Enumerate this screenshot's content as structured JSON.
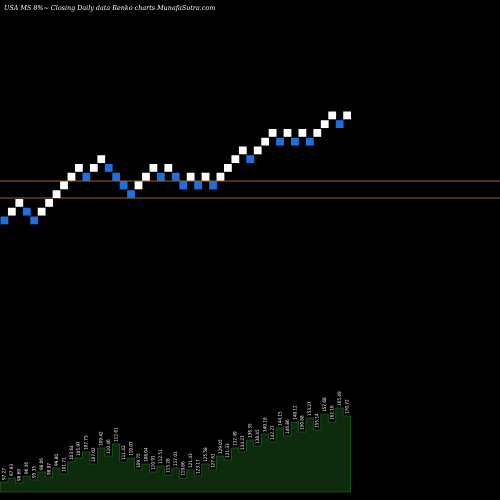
{
  "chart_data": {
    "type": "renko",
    "title": "USA MS 8%~  Closing Daily data  Renko  charts MunafaSutra.com",
    "colors": {
      "background": "#000000",
      "up_brick": "#ffffff",
      "down_brick": "#1e6fe0",
      "reference_line": "#a0621a",
      "volume_fill": "#0c2a0c",
      "volume_stroke": "#1f5a1f",
      "label": "#ffffff"
    },
    "bricks": [
      {
        "level": 0,
        "dir": "down"
      },
      {
        "level": 1,
        "dir": "up"
      },
      {
        "level": 2,
        "dir": "up"
      },
      {
        "level": 1,
        "dir": "down"
      },
      {
        "level": 0,
        "dir": "down"
      },
      {
        "level": 1,
        "dir": "up"
      },
      {
        "level": 2,
        "dir": "up"
      },
      {
        "level": 3,
        "dir": "up"
      },
      {
        "level": 4,
        "dir": "up"
      },
      {
        "level": 5,
        "dir": "up"
      },
      {
        "level": 6,
        "dir": "up"
      },
      {
        "level": 5,
        "dir": "down"
      },
      {
        "level": 6,
        "dir": "up"
      },
      {
        "level": 7,
        "dir": "up"
      },
      {
        "level": 6,
        "dir": "down"
      },
      {
        "level": 5,
        "dir": "down"
      },
      {
        "level": 4,
        "dir": "down"
      },
      {
        "level": 3,
        "dir": "down"
      },
      {
        "level": 4,
        "dir": "up"
      },
      {
        "level": 5,
        "dir": "up"
      },
      {
        "level": 6,
        "dir": "up"
      },
      {
        "level": 5,
        "dir": "down"
      },
      {
        "level": 6,
        "dir": "up"
      },
      {
        "level": 5,
        "dir": "down"
      },
      {
        "level": 4,
        "dir": "down"
      },
      {
        "level": 5,
        "dir": "up"
      },
      {
        "level": 4,
        "dir": "down"
      },
      {
        "level": 5,
        "dir": "up"
      },
      {
        "level": 4,
        "dir": "down"
      },
      {
        "level": 5,
        "dir": "up"
      },
      {
        "level": 6,
        "dir": "up"
      },
      {
        "level": 7,
        "dir": "up"
      },
      {
        "level": 8,
        "dir": "up"
      },
      {
        "level": 7,
        "dir": "down"
      },
      {
        "level": 8,
        "dir": "up"
      },
      {
        "level": 9,
        "dir": "up"
      },
      {
        "level": 10,
        "dir": "up"
      },
      {
        "level": 9,
        "dir": "down"
      },
      {
        "level": 10,
        "dir": "up"
      },
      {
        "level": 9,
        "dir": "down"
      },
      {
        "level": 10,
        "dir": "up"
      },
      {
        "level": 9,
        "dir": "down"
      },
      {
        "level": 10,
        "dir": "up"
      },
      {
        "level": 11,
        "dir": "up"
      },
      {
        "level": 12,
        "dir": "up"
      },
      {
        "level": 11,
        "dir": "down"
      },
      {
        "level": 12,
        "dir": "up"
      }
    ],
    "reference_lines": [
      181,
      198
    ],
    "volume_profile": [
      10,
      14,
      9,
      16,
      12,
      20,
      15,
      24,
      18,
      30,
      34,
      40,
      28,
      44,
      36,
      48,
      30,
      34,
      22,
      28,
      20,
      26,
      17,
      24,
      14,
      22,
      16,
      28,
      22,
      36,
      32,
      44,
      40,
      52,
      46,
      58,
      50,
      64,
      56,
      70,
      60,
      74,
      62,
      78,
      70,
      84,
      76
    ],
    "volume_labels": [
      "97.27",
      "97.93",
      "98.60",
      "96.36",
      "95.35",
      "98.06",
      "98.97",
      "99.80",
      "101.71",
      "103.64",
      "105.97",
      "107.75",
      "107.02",
      "109.42",
      "110.46",
      "112.61",
      "111.42",
      "110.07",
      "109.75",
      "108.04",
      "110.91",
      "112.51",
      "115.28",
      "117.01",
      "119.86",
      "121.43",
      "123.17",
      "125.58",
      "127.61",
      "129.05",
      "131.33",
      "132.49",
      "134.27",
      "136.35",
      "138.45",
      "140.18",
      "142.27",
      "144.15",
      "146.86",
      "148.12",
      "150.88",
      "153.27",
      "155.14",
      "157.68",
      "162.16",
      "165.49",
      "170.72"
    ]
  }
}
